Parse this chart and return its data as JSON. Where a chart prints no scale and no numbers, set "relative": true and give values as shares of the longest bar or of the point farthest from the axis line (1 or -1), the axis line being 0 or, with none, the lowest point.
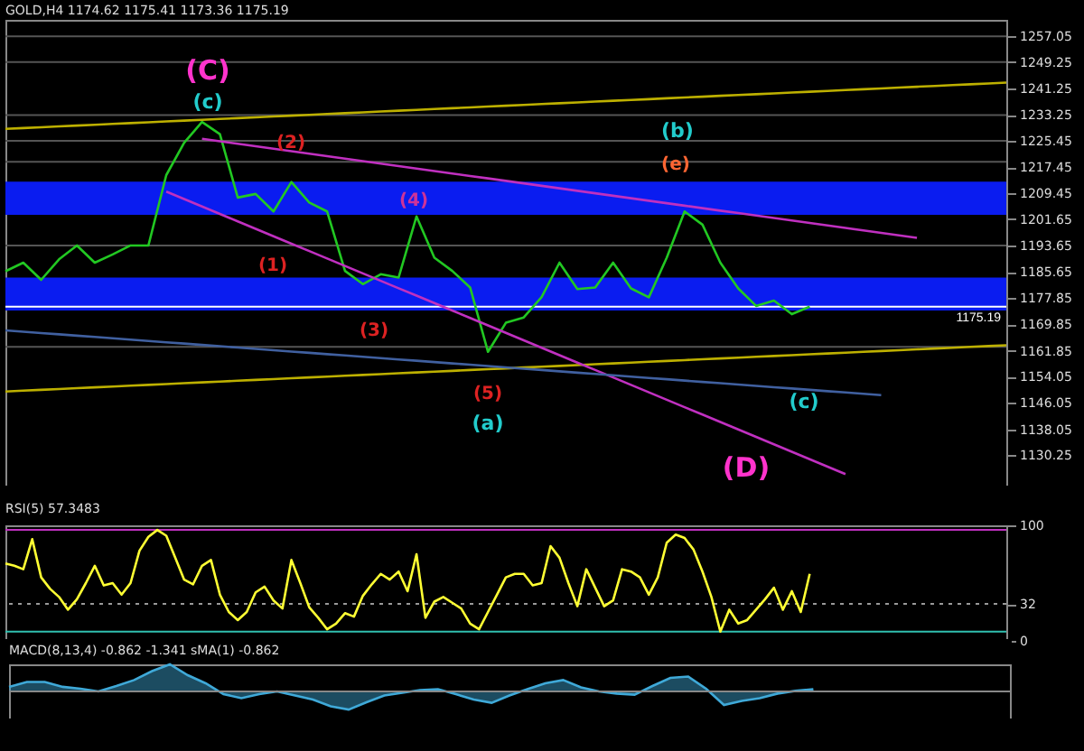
{
  "chart_data": [
    {
      "type": "line",
      "title": "GOLD,H4 1174.62 1175.41 1173.36 1175.19",
      "ylim": [
        1121,
        1262
      ],
      "tick_labels": "y",
      "categories": [
        null,
        null,
        null,
        null,
        null,
        null,
        null,
        null,
        null,
        null,
        null,
        null,
        null,
        null,
        null,
        null,
        null,
        null,
        null,
        null,
        null,
        null,
        null,
        null,
        null,
        null,
        null,
        null,
        null,
        null,
        null,
        null,
        null,
        null,
        null,
        null,
        null,
        null,
        null,
        null,
        null,
        null,
        null,
        null,
        null,
        null,
        null,
        null,
        null,
        null,
        null,
        null,
        null,
        null,
        null,
        null,
        null
      ],
      "yticks": [
        1130.25,
        1138.05,
        1146.05,
        1154.05,
        1161.85,
        1169.85,
        1177.85,
        1185.65,
        1193.65,
        1201.65,
        1209.45,
        1217.45,
        1225.45,
        1233.25,
        1241.25,
        1249.25,
        1257.05
      ],
      "bands": [
        {
          "axis": "y",
          "from": 1203,
          "to": 1213,
          "color": "#0a1cf0"
        },
        {
          "axis": "y",
          "from": 1174,
          "to": 1184,
          "color": "#0a1cf0"
        }
      ],
      "ref_lines": [
        {
          "axis": "y",
          "value": 1257.0,
          "color": "#555555"
        },
        {
          "axis": "y",
          "value": 1249.2,
          "color": "#555555"
        },
        {
          "axis": "y",
          "value": 1233.2,
          "color": "#555555"
        },
        {
          "axis": "y",
          "value": 1225.4,
          "color": "#555555"
        },
        {
          "axis": "y",
          "value": 1219.0,
          "color": "#555555"
        },
        {
          "axis": "y",
          "value": 1193.7,
          "color": "#555555"
        },
        {
          "axis": "y",
          "value": 1163.0,
          "color": "#555555"
        },
        {
          "axis": "y",
          "value": 1175.19,
          "label": "1175.19",
          "color": "#ffffff"
        }
      ],
      "series": [
        {
          "color": "#22c822",
          "values": [
            1185.9,
            1188.5,
            1183.3,
            1189.5,
            1193.7,
            1188.5,
            1191.0,
            1193.7,
            1193.7,
            1215.0,
            1224.8,
            1231.1,
            1227.4,
            1208.2,
            1209.3,
            1204.0,
            1212.9,
            1206.7,
            1204.0,
            1186.0,
            1182.0,
            1185.0,
            1184.0,
            1202.5,
            1190.0,
            1186.0,
            1181.0,
            1161.5,
            1170.3,
            1171.9,
            1178.1,
            1188.5,
            1180.5,
            1181.0,
            1188.5,
            1180.7,
            1178.0,
            1190.0,
            1204.0,
            1200.0,
            1188.5,
            1180.7,
            1175.4,
            1177.0,
            1172.9,
            1175.19,
            null,
            null,
            null,
            null,
            null,
            null,
            null,
            null,
            null,
            null,
            null
          ]
        },
        {
          "color": "#bdb000",
          "values": [
            1229,
            1229.25,
            1229.5,
            1229.75,
            1230,
            1230.25,
            1230.5,
            1230.75,
            1231,
            1231.25,
            1231.5,
            1231.75,
            1232,
            1232.25,
            1232.5,
            1232.75,
            1233,
            1233.25,
            1233.5,
            1233.75,
            1234,
            1234.25,
            1234.5,
            1234.75,
            1235,
            1235.25,
            1235.5,
            1235.75,
            1236,
            1236.25,
            1236.5,
            1236.75,
            1237,
            1237.25,
            1237.5,
            1237.75,
            1238,
            1238.25,
            1238.5,
            1238.75,
            1239,
            1239.25,
            1239.5,
            1239.75,
            1240,
            1240.25,
            1240.5,
            1240.75,
            1241,
            1241.25,
            1241.5,
            1241.75,
            1242,
            1242.25,
            1242.5,
            1242.75,
            1243
          ]
        },
        {
          "color": "#bdb000",
          "values": [
            1149.5,
            1149.75,
            1150,
            1150.25,
            1150.5,
            1150.75,
            1151,
            1151.25,
            1151.5,
            1151.75,
            1152,
            1152.25,
            1152.5,
            1152.75,
            1153,
            1153.25,
            1153.5,
            1153.75,
            1154,
            1154.25,
            1154.5,
            1154.75,
            1155,
            1155.25,
            1155.5,
            1155.75,
            1156,
            1156.25,
            1156.5,
            1156.75,
            1157,
            1157.25,
            1157.5,
            1157.75,
            1158,
            1158.25,
            1158.5,
            1158.75,
            1159,
            1159.25,
            1159.5,
            1159.75,
            1160,
            1160.25,
            1160.5,
            1160.75,
            1161,
            1161.25,
            1161.5,
            1161.75,
            1162,
            1162.25,
            1162.5,
            1162.75,
            1163,
            1163.25,
            1163.5
          ]
        },
        {
          "color": "#c030c0",
          "values": [
            null,
            null,
            null,
            null,
            null,
            null,
            null,
            null,
            null,
            null,
            null,
            1226,
            1225.25,
            1224.5,
            1223.75,
            1223,
            1222.25,
            1221.5,
            1220.75,
            1220,
            1219.25,
            1218.5,
            1217.75,
            1217,
            1216.25,
            1215.5,
            1214.75,
            1214,
            1213.25,
            1212.5,
            1211.75,
            1211,
            1210.25,
            1209.5,
            1208.75,
            1208,
            1207.25,
            1206.5,
            1205.75,
            1205,
            1204.25,
            1203.5,
            1202.75,
            1202,
            1201.25,
            1200.5,
            1199.75,
            1199,
            1198.25,
            1197.5,
            1196.75,
            1196,
            null,
            null,
            null,
            null,
            null
          ]
        },
        {
          "color": "#c030c0",
          "values": [
            null,
            null,
            null,
            null,
            null,
            null,
            null,
            null,
            null,
            1210,
            1207.75,
            1205.5,
            1203.25,
            1201,
            1198.75,
            1196.5,
            1194.25,
            1192,
            1189.75,
            1187.5,
            1185.25,
            1183,
            1180.75,
            1178.5,
            1176.25,
            1174,
            1171.75,
            1169.5,
            1167.25,
            1165,
            1162.75,
            1160.5,
            1158.25,
            1156,
            1153.75,
            1151.5,
            1149.25,
            1147,
            1144.75,
            1142.5,
            1140.25,
            1138,
            1135.75,
            1133.5,
            1131.25,
            1129,
            1126.75,
            1124.5,
            null,
            null,
            null,
            null,
            null,
            null,
            null,
            null,
            null
          ]
        },
        {
          "color": "#4060a0",
          "values": [
            1168,
            1167.6,
            1167.2,
            1166.8,
            1166.4,
            1166,
            1165.6,
            1165.2,
            1164.8,
            1164.4,
            1164,
            1163.6,
            1163.2,
            1162.8,
            1162.4,
            1162,
            1161.6,
            1161.2,
            1160.8,
            1160.4,
            1160,
            1159.6,
            1159.2,
            1158.8,
            1158.4,
            1158,
            1157.6,
            1157.2,
            1156.8,
            1156.4,
            1156,
            1155.6,
            1155.2,
            1154.8,
            1154.4,
            1154,
            1153.6,
            1153.2,
            1152.8,
            1152.4,
            1152,
            1151.6,
            1151.2,
            1150.8,
            1150.4,
            1150,
            1149.6,
            1149.2,
            1148.8,
            1148.4,
            null,
            null,
            null,
            null,
            null,
            null,
            null
          ]
        }
      ],
      "annotations": [
        "(C)",
        "(c)",
        "(b)",
        "(e)",
        "(2)",
        "(4)",
        "(1)",
        "(3)",
        "(5)",
        "(a)",
        "(c)",
        "(D)"
      ]
    },
    {
      "type": "line",
      "title": "RSI(5) 57.3483",
      "ylim": [
        0,
        100
      ],
      "yticks": [
        0,
        32,
        100
      ],
      "tick_labels": "y",
      "categories": [
        null,
        null,
        null,
        null,
        null,
        null,
        null,
        null,
        null,
        null,
        null,
        null,
        null,
        null,
        null,
        null,
        null,
        null,
        null,
        null,
        null,
        null,
        null,
        null,
        null,
        null,
        null,
        null,
        null,
        null,
        null,
        null,
        null,
        null,
        null,
        null,
        null,
        null,
        null,
        null,
        null,
        null,
        null,
        null,
        null,
        null,
        null,
        null,
        null,
        null,
        null,
        null,
        null,
        null,
        null,
        null,
        null,
        null,
        null,
        null,
        null,
        null,
        null,
        null,
        null,
        null,
        null,
        null,
        null,
        null,
        null,
        null,
        null,
        null,
        null,
        null,
        null,
        null,
        null,
        null,
        null,
        null,
        null,
        null,
        null,
        null,
        null,
        null,
        null,
        null,
        null,
        null,
        null,
        null,
        null,
        null,
        null,
        null,
        null,
        null,
        null,
        null,
        null,
        null,
        null,
        null,
        null,
        null,
        null,
        null,
        null,
        null,
        null
      ],
      "ref_lines": [
        {
          "axis": "y",
          "value": 32,
          "color": "#999999",
          "line_style": "dotted"
        },
        {
          "axis": "y",
          "value": 96,
          "color": "#c030c0"
        },
        {
          "axis": "y",
          "value": 8,
          "color": "#30c0b0"
        }
      ],
      "series": [
        {
          "color": "#ffff33",
          "values": [
            67,
            65,
            62,
            88,
            55,
            45,
            38,
            27,
            36,
            50,
            65,
            48,
            50,
            40,
            50,
            78,
            90,
            96,
            91,
            72,
            53,
            49,
            65,
            70,
            40,
            25,
            18,
            25,
            42,
            47,
            35,
            28,
            70,
            50,
            29,
            20,
            10,
            15,
            24,
            21,
            39,
            49,
            58,
            53,
            60,
            43,
            75,
            20,
            34,
            38,
            33,
            28,
            15,
            10,
            25,
            40,
            55,
            58,
            58,
            48,
            50,
            82,
            72,
            50,
            30,
            62,
            46,
            30,
            35,
            62,
            60,
            55,
            40,
            55,
            85,
            92,
            89,
            79,
            60,
            38,
            8,
            27,
            15,
            18,
            27,
            36,
            46,
            27,
            43,
            25,
            58,
            null,
            null,
            null,
            null,
            null,
            null,
            null,
            null,
            null,
            null,
            null,
            null,
            null,
            null,
            null,
            null,
            null,
            null,
            null,
            null,
            null,
            null
          ]
        }
      ]
    },
    {
      "type": "area",
      "title": "MACD(8,13,4) -0.862 -1.341 sMA(1) -0.862",
      "relative": true,
      "tick_labels": false,
      "categories": [
        null,
        null,
        null,
        null,
        null,
        null,
        null,
        null,
        null,
        null,
        null,
        null,
        null,
        null,
        null,
        null,
        null,
        null,
        null,
        null,
        null,
        null,
        null,
        null,
        null,
        null,
        null,
        null,
        null,
        null,
        null,
        null,
        null,
        null,
        null,
        null,
        null,
        null,
        null,
        null,
        null,
        null,
        null,
        null,
        null,
        null,
        null,
        null,
        null,
        null,
        null,
        null,
        null,
        null,
        null,
        null,
        null
      ],
      "series": [
        {
          "color": "#3fa9d8",
          "values": [
            0.17,
            0.35,
            0.35,
            0.17,
            0.1,
            0,
            0.2,
            0.42,
            0.75,
            1,
            0.6,
            0.3,
            -0.1,
            -0.25,
            -0.1,
            0,
            -0.15,
            -0.3,
            -0.55,
            -0.67,
            -0.4,
            -0.15,
            -0.05,
            0.05,
            0.08,
            -0.1,
            -0.3,
            -0.42,
            -0.15,
            0.08,
            0.3,
            0.42,
            0.15,
            0,
            -0.08,
            -0.12,
            0.2,
            0.5,
            0.55,
            0.1,
            -0.5,
            -0.35,
            -0.25,
            -0.08,
            0.02,
            0.08,
            null,
            null,
            null,
            null,
            null,
            null,
            null,
            null,
            null,
            null,
            null
          ]
        }
      ]
    }
  ]
}
